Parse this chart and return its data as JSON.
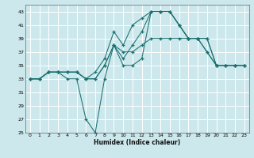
{
  "xlabel": "Humidex (Indice chaleur)",
  "bg_color": "#cce8ec",
  "grid_color": "#ffffff",
  "line_color": "#1a7070",
  "xlim": [
    -0.5,
    23.5
  ],
  "ylim": [
    25,
    44
  ],
  "yticks": [
    25,
    27,
    29,
    31,
    33,
    35,
    37,
    39,
    41,
    43
  ],
  "xticks": [
    0,
    1,
    2,
    3,
    4,
    5,
    6,
    7,
    8,
    9,
    10,
    11,
    12,
    13,
    14,
    15,
    16,
    17,
    18,
    19,
    20,
    21,
    22,
    23
  ],
  "line1_x": [
    0,
    1,
    2,
    3,
    4,
    5,
    6,
    7,
    8,
    9,
    10,
    11,
    12,
    13,
    14,
    15,
    16,
    17,
    18,
    19,
    20,
    21,
    22,
    23
  ],
  "line1_y": [
    33,
    33,
    34,
    34,
    34,
    34,
    33,
    33,
    35,
    38,
    37,
    37,
    38,
    39,
    39,
    39,
    39,
    39,
    39,
    39,
    35,
    35,
    35,
    35
  ],
  "line2_x": [
    0,
    1,
    2,
    3,
    4,
    5,
    6,
    7,
    8,
    9,
    10,
    11,
    12,
    13,
    14,
    15,
    16,
    17,
    18,
    19,
    20,
    21,
    22,
    23
  ],
  "line2_y": [
    33,
    33,
    34,
    34,
    34,
    34,
    33,
    34,
    36,
    40,
    38,
    41,
    42,
    43,
    43,
    43,
    41,
    39,
    39,
    39,
    35,
    35,
    35,
    35
  ],
  "line3_x": [
    0,
    1,
    2,
    3,
    4,
    5,
    6,
    7,
    8,
    9,
    10,
    11,
    12,
    13,
    14,
    15,
    16,
    17,
    18,
    19,
    20,
    21,
    22,
    23
  ],
  "line3_y": [
    33,
    33,
    34,
    34,
    34,
    34,
    33,
    33,
    35,
    38,
    36,
    38,
    40,
    43,
    43,
    43,
    41,
    39,
    39,
    37,
    35,
    35,
    35,
    35
  ],
  "line4_x": [
    0,
    1,
    2,
    3,
    4,
    5,
    6,
    7,
    8,
    9,
    10,
    11,
    12,
    13,
    14,
    15,
    16,
    17,
    18,
    19,
    20,
    21,
    22,
    23
  ],
  "line4_y": [
    33,
    33,
    34,
    34,
    33,
    33,
    27,
    25,
    33,
    38,
    35,
    35,
    36,
    43,
    43,
    43,
    41,
    39,
    39,
    37,
    35,
    35,
    35,
    35
  ]
}
